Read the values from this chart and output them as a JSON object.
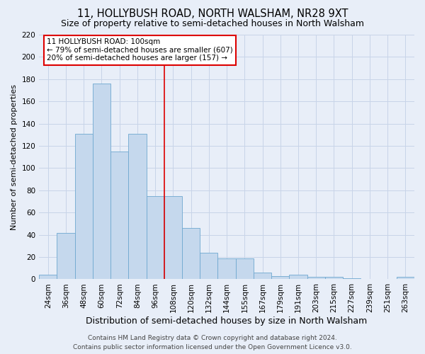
{
  "title": "11, HOLLYBUSH ROAD, NORTH WALSHAM, NR28 9XT",
  "subtitle": "Size of property relative to semi-detached houses in North Walsham",
  "xlabel": "Distribution of semi-detached houses by size in North Walsham",
  "ylabel": "Number of semi-detached properties",
  "footer1": "Contains HM Land Registry data © Crown copyright and database right 2024.",
  "footer2": "Contains public sector information licensed under the Open Government Licence v3.0.",
  "categories": [
    "24sqm",
    "36sqm",
    "48sqm",
    "60sqm",
    "72sqm",
    "84sqm",
    "96sqm",
    "108sqm",
    "120sqm",
    "132sqm",
    "144sqm",
    "155sqm",
    "167sqm",
    "179sqm",
    "191sqm",
    "203sqm",
    "215sqm",
    "227sqm",
    "239sqm",
    "251sqm",
    "263sqm"
  ],
  "values": [
    4,
    42,
    131,
    176,
    115,
    131,
    75,
    75,
    46,
    24,
    19,
    19,
    6,
    3,
    4,
    2,
    2,
    1,
    0,
    0,
    2
  ],
  "bar_color": "#c5d8ed",
  "bar_edge_color": "#6fa8d0",
  "highlight_bar_index": 7,
  "annotation_line1": "11 HOLLYBUSH ROAD: 100sqm",
  "annotation_line2": "← 79% of semi-detached houses are smaller (607)",
  "annotation_line3": "20% of semi-detached houses are larger (157) →",
  "annotation_box_color": "#dd0000",
  "annotation_text_color": "#000000",
  "vline_color": "#dd0000",
  "ylim": [
    0,
    220
  ],
  "yticks": [
    0,
    20,
    40,
    60,
    80,
    100,
    120,
    140,
    160,
    180,
    200,
    220
  ],
  "grid_color": "#c8d4e8",
  "bg_color": "#e8eef8",
  "title_fontsize": 10.5,
  "subtitle_fontsize": 9,
  "axis_label_fontsize": 8,
  "tick_fontsize": 7.5,
  "xlabel_fontsize": 9,
  "footer_fontsize": 6.5
}
